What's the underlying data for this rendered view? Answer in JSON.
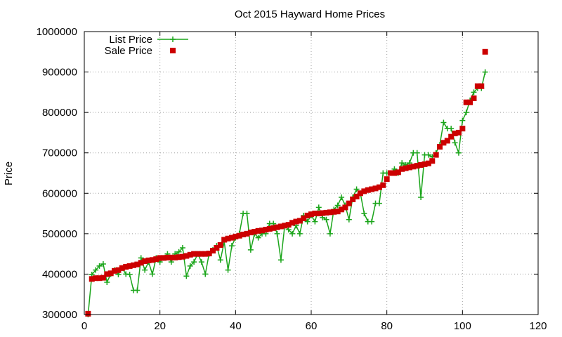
{
  "chart_data": {
    "type": "line",
    "title": "Oct 2015 Hayward Home Prices",
    "xlabel": "",
    "ylabel": "Price",
    "xlim": [
      0,
      120
    ],
    "ylim": [
      300000,
      1000000
    ],
    "xticks": [
      0,
      20,
      40,
      60,
      80,
      100,
      120
    ],
    "yticks": [
      300000,
      400000,
      500000,
      600000,
      700000,
      800000,
      900000,
      1000000
    ],
    "xtick_labels": [
      "0",
      "20",
      "40",
      "60",
      "80",
      "100",
      "120"
    ],
    "ytick_labels": [
      "300000",
      "400000",
      "500000",
      "600000",
      "700000",
      "800000",
      "900000",
      "1000000"
    ],
    "grid": true,
    "legend_position": "top-left",
    "series": [
      {
        "name": "List Price",
        "color": "#1aa51a",
        "style": "line+cross",
        "x": [
          1,
          2,
          3,
          4,
          5,
          6,
          7,
          8,
          9,
          10,
          11,
          12,
          13,
          14,
          15,
          16,
          17,
          18,
          19,
          20,
          21,
          22,
          23,
          24,
          25,
          26,
          27,
          28,
          29,
          30,
          31,
          32,
          33,
          34,
          35,
          36,
          37,
          38,
          39,
          40,
          41,
          42,
          43,
          44,
          45,
          46,
          47,
          48,
          49,
          50,
          51,
          52,
          53,
          54,
          55,
          56,
          57,
          58,
          59,
          60,
          61,
          62,
          63,
          64,
          65,
          66,
          67,
          68,
          69,
          70,
          71,
          72,
          73,
          74,
          75,
          76,
          77,
          78,
          79,
          80,
          81,
          82,
          83,
          84,
          85,
          86,
          87,
          88,
          89,
          90,
          91,
          92,
          93,
          94,
          95,
          96,
          97,
          98,
          99,
          100,
          101,
          102,
          103,
          104,
          105,
          106
        ],
        "values": [
          300000,
          399000,
          410000,
          420000,
          425000,
          380000,
          400000,
          410000,
          399000,
          415000,
          400000,
          399000,
          360000,
          360000,
          440000,
          410000,
          430000,
          400000,
          440000,
          430000,
          440000,
          450000,
          430000,
          450000,
          455000,
          465000,
          395000,
          420000,
          430000,
          450000,
          430000,
          400000,
          450000,
          460000,
          470000,
          435000,
          480000,
          410000,
          470000,
          490000,
          500000,
          550000,
          550000,
          460000,
          500000,
          490000,
          500000,
          500000,
          525000,
          525000,
          500000,
          435000,
          520000,
          510000,
          500000,
          520000,
          500000,
          545000,
          530000,
          545000,
          530000,
          565000,
          540000,
          535000,
          500000,
          560000,
          570000,
          590000,
          570000,
          535000,
          590000,
          610000,
          600000,
          550000,
          530000,
          530000,
          575000,
          575000,
          650000,
          650000,
          650000,
          660000,
          650000,
          675000,
          670000,
          675000,
          700000,
          700000,
          590000,
          695000,
          695000,
          690000,
          700000,
          720000,
          775000,
          760000,
          760000,
          725000,
          700000,
          780000,
          800000,
          830000,
          850000,
          860000,
          860000,
          900000
        ]
      },
      {
        "name": "Sale Price",
        "color": "#cc0000",
        "style": "square",
        "x": [
          1,
          2,
          3,
          4,
          5,
          6,
          7,
          8,
          9,
          10,
          11,
          12,
          13,
          14,
          15,
          16,
          17,
          18,
          19,
          20,
          21,
          22,
          23,
          24,
          25,
          26,
          27,
          28,
          29,
          30,
          31,
          32,
          33,
          34,
          35,
          36,
          37,
          38,
          39,
          40,
          41,
          42,
          43,
          44,
          45,
          46,
          47,
          48,
          49,
          50,
          51,
          52,
          53,
          54,
          55,
          56,
          57,
          58,
          59,
          60,
          61,
          62,
          63,
          64,
          65,
          66,
          67,
          68,
          69,
          70,
          71,
          72,
          73,
          74,
          75,
          76,
          77,
          78,
          79,
          80,
          81,
          82,
          83,
          84,
          85,
          86,
          87,
          88,
          89,
          90,
          91,
          92,
          93,
          94,
          95,
          96,
          97,
          98,
          99,
          100,
          101,
          102,
          103,
          104,
          105,
          106
        ],
        "values": [
          302000,
          388000,
          390000,
          390000,
          391000,
          400000,
          402000,
          408000,
          410000,
          415000,
          418000,
          420000,
          422000,
          424000,
          428000,
          432000,
          434000,
          435000,
          437000,
          440000,
          440000,
          441000,
          441000,
          441000,
          442000,
          443000,
          445000,
          448000,
          450000,
          450000,
          450000,
          450000,
          451000,
          458000,
          465000,
          472000,
          485000,
          488000,
          490000,
          493000,
          495000,
          498000,
          500000,
          503000,
          505000,
          507000,
          508000,
          510000,
          512000,
          514000,
          516000,
          518000,
          520000,
          522000,
          527000,
          530000,
          532000,
          538000,
          545000,
          548000,
          550000,
          550000,
          551000,
          552000,
          553000,
          554000,
          555000,
          560000,
          565000,
          575000,
          585000,
          592000,
          600000,
          605000,
          608000,
          610000,
          612000,
          615000,
          620000,
          635000,
          650000,
          650000,
          652000,
          660000,
          662000,
          664000,
          666000,
          668000,
          670000,
          672000,
          674000,
          680000,
          695000,
          715000,
          725000,
          730000,
          740000,
          748000,
          750000,
          760000,
          825000,
          825000,
          835000,
          865000,
          865000,
          950000
        ]
      }
    ]
  }
}
